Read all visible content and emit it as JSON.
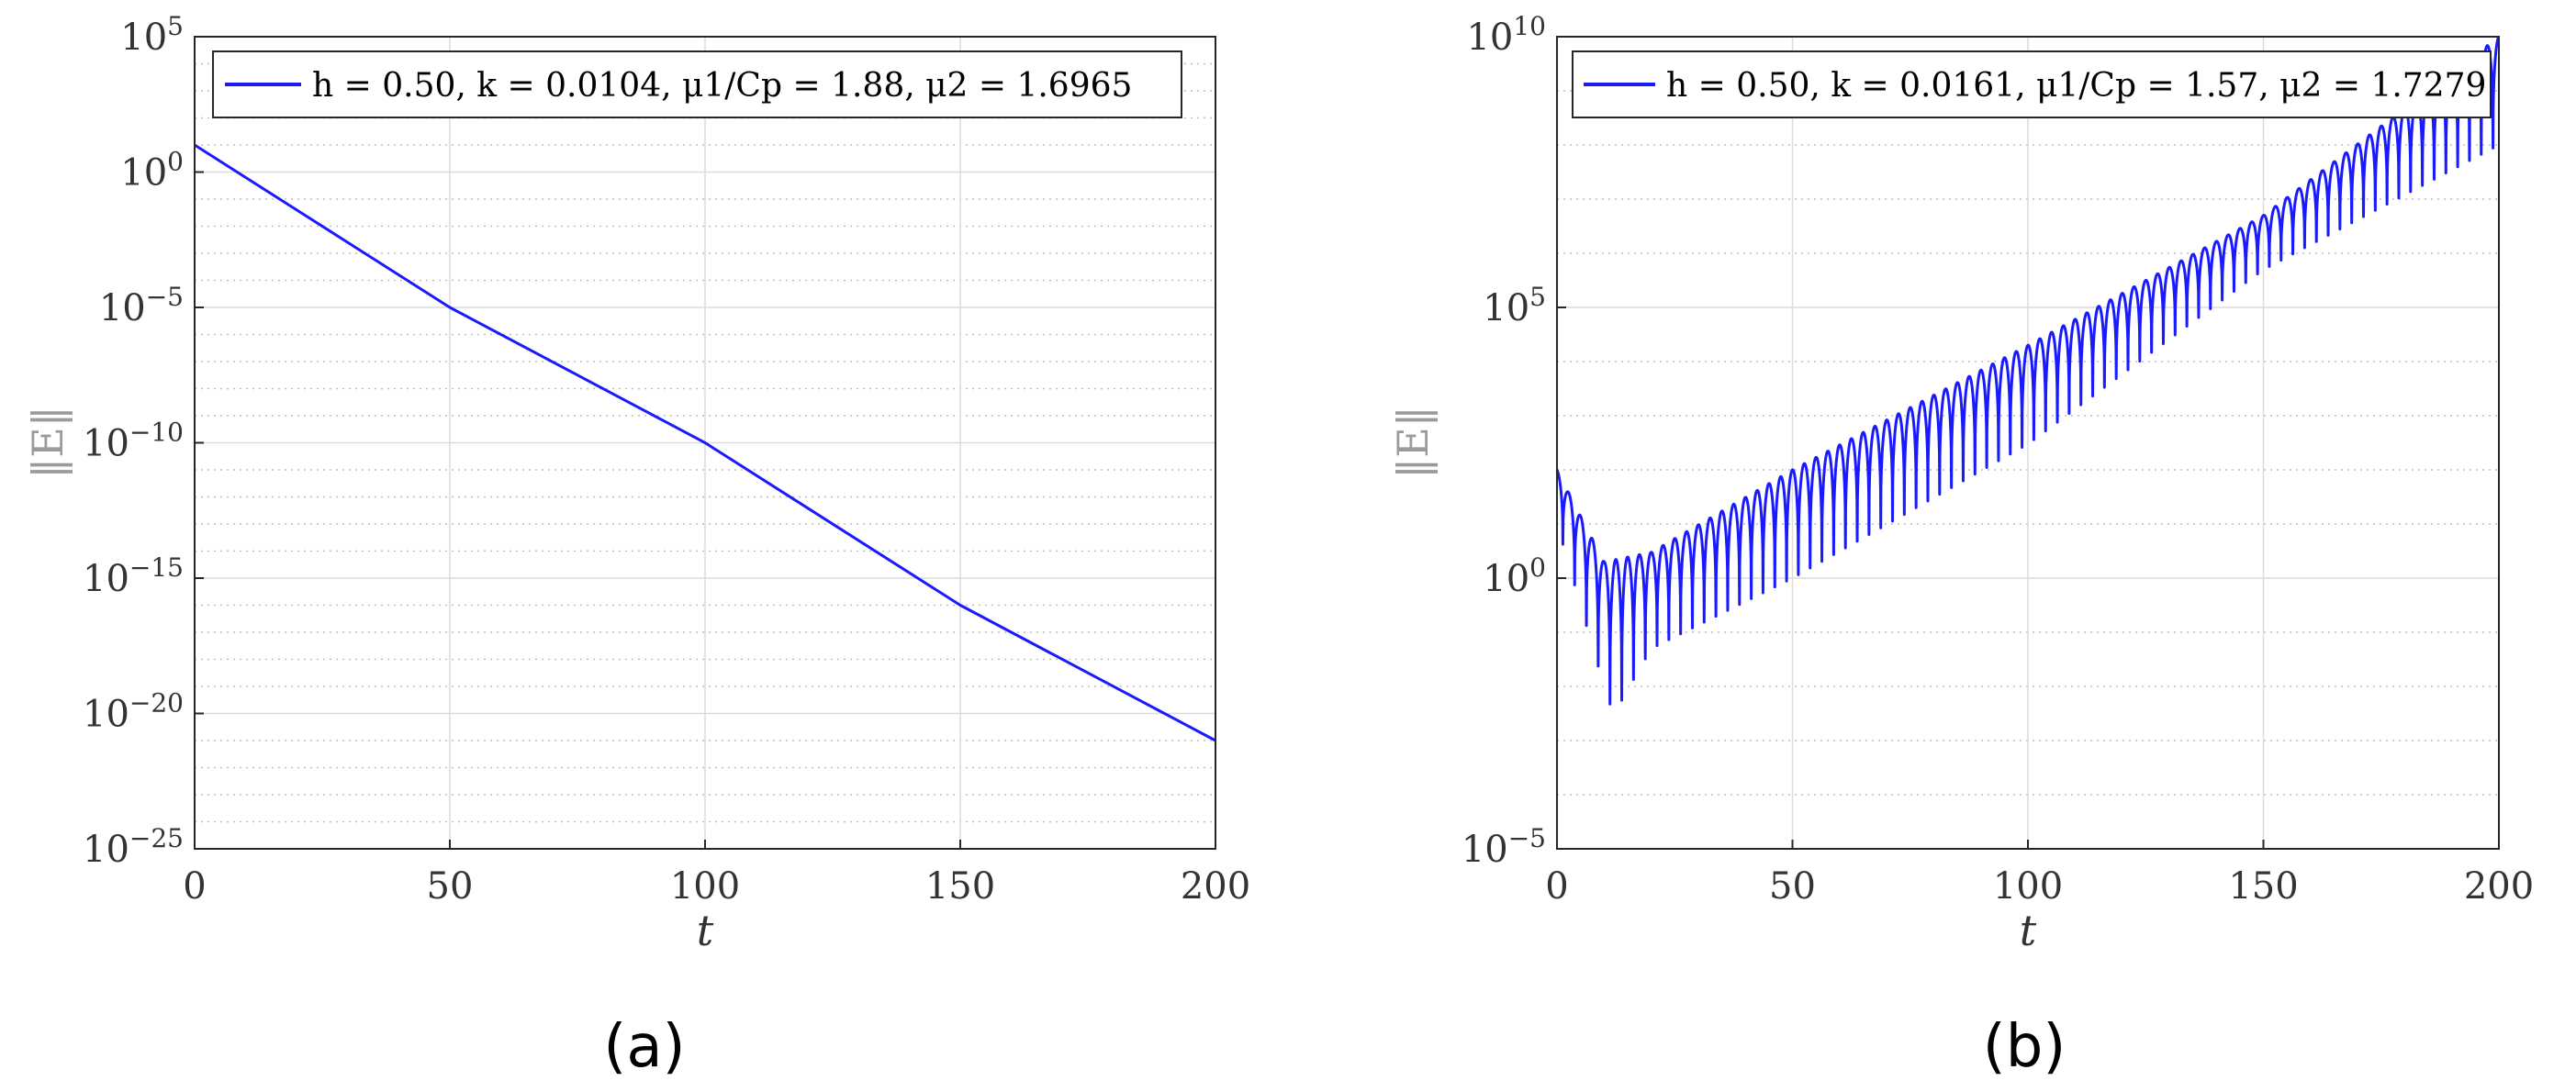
{
  "chart_data": [
    {
      "type": "line",
      "panel_label": "(a)",
      "xlabel": "t",
      "ylabel": "‖E‖",
      "xlim": [
        0,
        200
      ],
      "ylim": [
        1e-25,
        100000.0
      ],
      "yscale": "log",
      "grid": true,
      "legend_position": "top-right",
      "x_ticks": [
        "0",
        "50",
        "100",
        "150",
        "200"
      ],
      "y_ticks": [
        {
          "base": "10",
          "exp": "5"
        },
        {
          "base": "10",
          "exp": "0"
        },
        {
          "base": "10",
          "exp": "−5"
        },
        {
          "base": "10",
          "exp": "−10"
        },
        {
          "base": "10",
          "exp": "−15"
        },
        {
          "base": "10",
          "exp": "−20"
        },
        {
          "base": "10",
          "exp": "−25"
        }
      ],
      "series": [
        {
          "name": "h = 0.50, k = 0.0104, μ1/Cp = 1.88, μ2 = 1.6965",
          "color": "#1a1aff",
          "x": [
            0,
            50,
            100,
            150,
            200
          ],
          "y": [
            10.0,
            1e-05,
            1e-10,
            1e-16,
            1e-21
          ]
        }
      ]
    },
    {
      "type": "line",
      "panel_label": "(b)",
      "xlabel": "t",
      "ylabel": "‖E‖",
      "xlim": [
        0,
        200
      ],
      "ylim": [
        1e-05,
        10000000000.0
      ],
      "yscale": "log",
      "grid": true,
      "legend_position": "top-right",
      "x_ticks": [
        "0",
        "50",
        "100",
        "150",
        "200"
      ],
      "y_ticks": [
        {
          "base": "10",
          "exp": "10"
        },
        {
          "base": "10",
          "exp": "5"
        },
        {
          "base": "10",
          "exp": "0"
        },
        {
          "base": "10",
          "exp": "−5"
        }
      ],
      "series": [
        {
          "name": "h = 0.50, k = 0.0161, μ1/Cp = 1.57, μ2 = 1.7279",
          "color": "#1a1aff",
          "oscillation_period": 2.5,
          "upper_envelope": {
            "x": [
              0,
              10,
              20,
              50,
              100,
              150,
              200
            ],
            "y": [
              100,
              2,
              3,
              100,
              20000.0,
              5000000.0,
              10000000000.0
            ]
          },
          "lower_envelope": {
            "x": [
              0,
              10,
              12,
              20,
              50,
              100,
              150,
              200
            ],
            "y": [
              10,
              0.01,
              0.003,
              0.05,
              1,
              300,
              500000.0,
              100000000.0
            ]
          }
        }
      ]
    }
  ]
}
